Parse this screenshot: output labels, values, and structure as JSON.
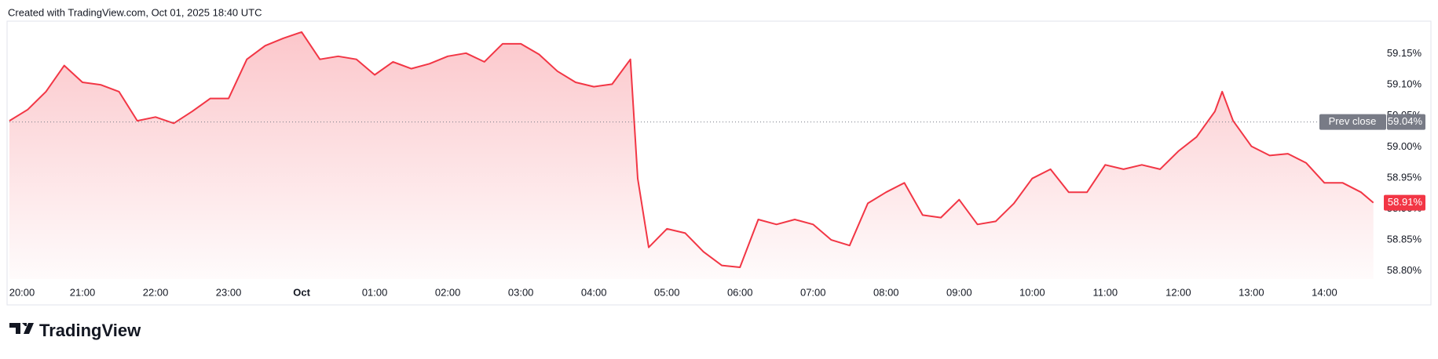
{
  "header": "Created with TradingView.com, Oct 01, 2025 18:40 UTC",
  "footer": "TradingView",
  "chart_data": {
    "type": "area",
    "x": [
      0,
      0.25,
      0.5,
      0.75,
      1,
      1.25,
      1.5,
      1.75,
      2,
      2.25,
      2.5,
      2.75,
      3,
      3.25,
      3.5,
      3.75,
      4,
      4.25,
      4.5,
      4.75,
      5,
      5.25,
      5.5,
      5.75,
      6,
      6.25,
      6.5,
      6.75,
      7,
      7.25,
      7.5,
      7.75,
      8,
      8.25,
      8.5,
      8.6,
      8.75,
      9,
      9.25,
      9.5,
      9.75,
      10,
      10.25,
      10.5,
      10.75,
      11,
      11.25,
      11.5,
      11.75,
      12,
      12.25,
      12.5,
      12.75,
      13,
      13.25,
      13.5,
      13.75,
      14,
      14.25,
      14.5,
      14.75,
      15,
      15.25,
      15.5,
      15.75,
      16,
      16.25,
      16.5,
      16.6,
      16.75,
      17,
      17.25,
      17.5,
      17.75,
      18,
      18.25,
      18.5,
      18.67
    ],
    "values": [
      59.042,
      59.06,
      59.089,
      59.131,
      59.104,
      59.1,
      59.089,
      59.042,
      59.048,
      59.038,
      59.057,
      59.078,
      59.078,
      59.141,
      59.163,
      59.175,
      59.185,
      59.141,
      59.146,
      59.141,
      59.116,
      59.137,
      59.126,
      59.134,
      59.146,
      59.151,
      59.137,
      59.166,
      59.166,
      59.149,
      59.122,
      59.104,
      59.097,
      59.101,
      59.141,
      58.949,
      58.838,
      58.868,
      58.861,
      58.831,
      58.809,
      58.806,
      58.883,
      58.875,
      58.883,
      58.875,
      58.85,
      58.841,
      58.909,
      58.927,
      58.942,
      58.89,
      58.886,
      58.915,
      58.875,
      58.88,
      58.909,
      58.949,
      58.964,
      58.927,
      58.927,
      58.971,
      58.964,
      58.971,
      58.964,
      58.993,
      59.016,
      59.057,
      59.089,
      59.042,
      59.001,
      58.986,
      58.989,
      58.974,
      58.942,
      58.942,
      58.927,
      58.91
    ],
    "color": "#f23645",
    "last_value_label": "58.91%",
    "prev_close": {
      "label": "Prev close",
      "value": 59.04,
      "value_label": "59.04%"
    },
    "xlim": [
      0,
      19.35
    ],
    "xticks": [
      {
        "value": 0,
        "label": "20:00"
      },
      {
        "value": 1,
        "label": "21:00"
      },
      {
        "value": 2,
        "label": "22:00"
      },
      {
        "value": 3,
        "label": "23:00"
      },
      {
        "value": 4,
        "label": "Oct"
      },
      {
        "value": 5,
        "label": "01:00"
      },
      {
        "value": 6,
        "label": "02:00"
      },
      {
        "value": 7,
        "label": "03:00"
      },
      {
        "value": 8,
        "label": "04:00"
      },
      {
        "value": 9,
        "label": "05:00"
      },
      {
        "value": 10,
        "label": "06:00"
      },
      {
        "value": 11,
        "label": "07:00"
      },
      {
        "value": 12,
        "label": "08:00"
      },
      {
        "value": 13,
        "label": "09:00"
      },
      {
        "value": 14,
        "label": "10:00"
      },
      {
        "value": 15,
        "label": "11:00"
      },
      {
        "value": 16,
        "label": "12:00"
      },
      {
        "value": 17,
        "label": "13:00"
      },
      {
        "value": 18,
        "label": "14:00"
      }
    ],
    "ylim": [
      58.787,
      59.2
    ],
    "yticks": [
      {
        "value": 58.8,
        "label": "58.80%"
      },
      {
        "value": 58.85,
        "label": "58.85%"
      },
      {
        "value": 58.9,
        "label": "58.90%"
      },
      {
        "value": 58.95,
        "label": "58.95%"
      },
      {
        "value": 59.0,
        "label": "59.00%"
      },
      {
        "value": 59.05,
        "label": "59.05%"
      },
      {
        "value": 59.1,
        "label": "59.10%"
      },
      {
        "value": 59.15,
        "label": "59.15%"
      }
    ]
  }
}
